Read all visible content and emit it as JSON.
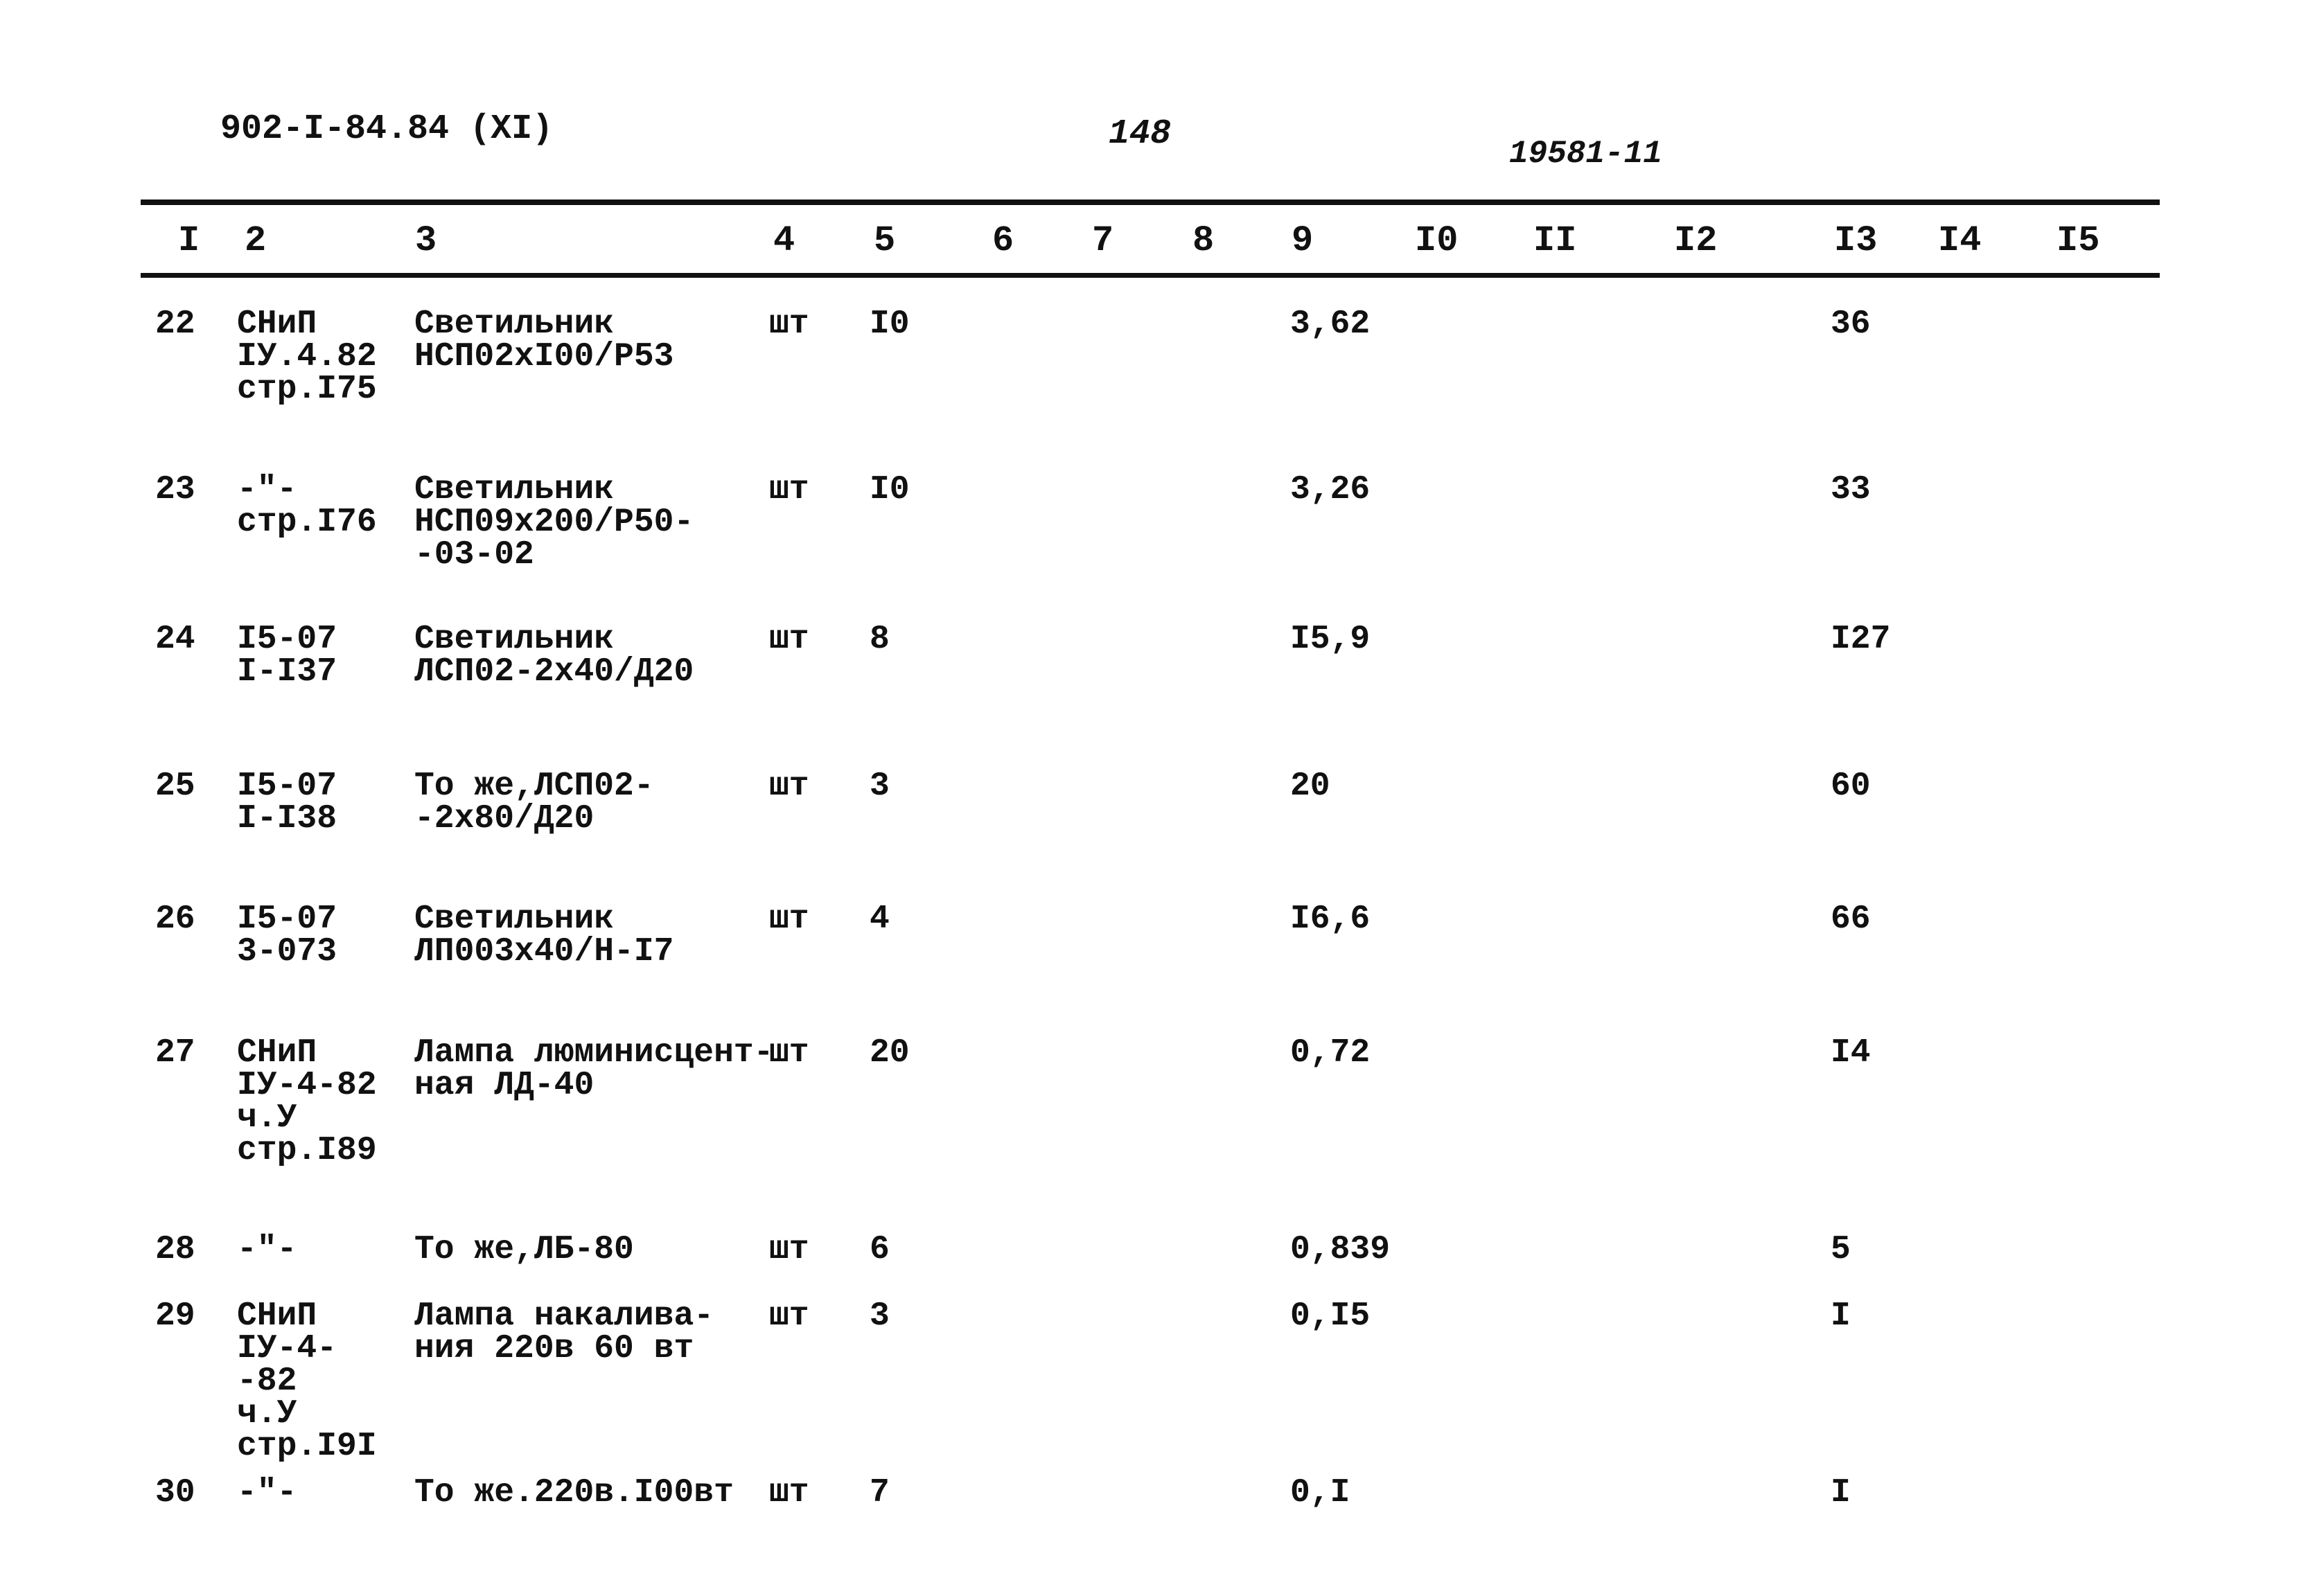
{
  "document": {
    "code": "902-I-84.84 (XI)",
    "page_number": "148",
    "archive_number": "19581-11"
  },
  "table": {
    "columns": [
      "I",
      "2",
      "3",
      "4",
      "5",
      "6",
      "7",
      "8",
      "9",
      "I0",
      "II",
      "I2",
      "I3",
      "I4",
      "I5"
    ],
    "rows": [
      {
        "n": "22",
        "source": "СНиП\nIУ.4.82\nстр.I75",
        "name": "Светильник\nНСП02хI00/Р53",
        "unit": "шт",
        "qty": "I0",
        "price": "3,62",
        "total": "36"
      },
      {
        "n": "23",
        "source": "-\"-\nстр.I76",
        "name": "Светильник\nНСП09х200/Р50-\n-03-02",
        "unit": "шт",
        "qty": "I0",
        "price": "3,26",
        "total": "33"
      },
      {
        "n": "24",
        "source": "I5-07\nI-I37",
        "name": "Светильник\nЛСП02-2х40/Д20",
        "unit": "шт",
        "qty": "8",
        "price": "I5,9",
        "total": "I27"
      },
      {
        "n": "25",
        "source": "I5-07\nI-I38",
        "name": "То же,ЛСП02-\n-2х80/Д20",
        "unit": "шт",
        "qty": "3",
        "price": "20",
        "total": "60"
      },
      {
        "n": "26",
        "source": "I5-07\n3-073",
        "name": "Светильник\nЛП003х40/Н-I7",
        "unit": "шт",
        "qty": "4",
        "price": "I6,6",
        "total": "66"
      },
      {
        "n": "27",
        "source": "СНиП\nIУ-4-82\nч.У\nстр.I89",
        "name": "Лампа люминисцент-\nная ЛД-40",
        "unit": "шт",
        "qty": "20",
        "price": "0,72",
        "total": "I4"
      },
      {
        "n": "28",
        "source": "-\"-",
        "name": "То же,ЛБ-80",
        "unit": "шт",
        "qty": "6",
        "price": "0,839",
        "total": "5"
      },
      {
        "n": "29",
        "source": "СНиП\nIУ-4-\n-82\nч.У\nстр.I9I",
        "name": "Лампа накалива-\nния 220в 60 вт",
        "unit": "шт",
        "qty": "3",
        "price": "0,I5",
        "total": "I"
      },
      {
        "n": "30",
        "source": "-\"-",
        "name": "То же.220в.I00вт",
        "unit": "шт",
        "qty": "7",
        "price": "0,I",
        "total": "I"
      }
    ]
  }
}
